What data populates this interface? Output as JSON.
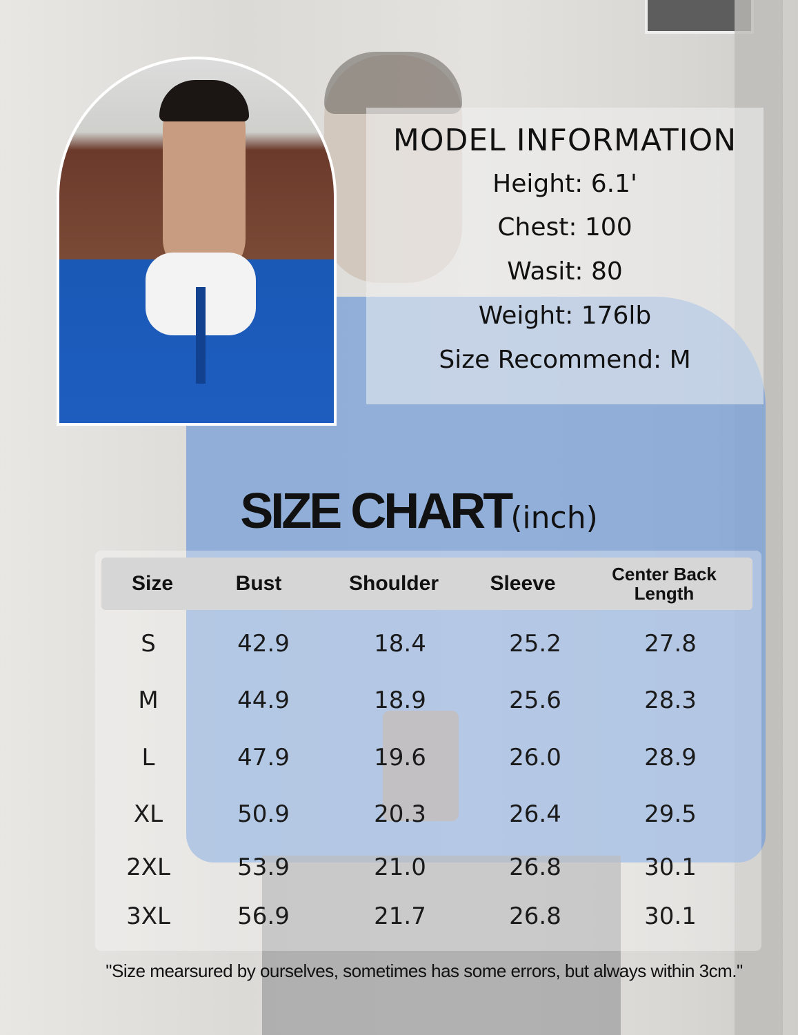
{
  "model_info": {
    "title": "MODEL INFORMATION",
    "lines": [
      "Height: 6.1'",
      "Chest: 100",
      "Wasit: 80",
      "Weight: 176lb",
      "Size Recommend: M"
    ]
  },
  "size_chart": {
    "title": "SIZE CHART",
    "unit": "(inch)",
    "headers": [
      "Size",
      "Bust",
      "Shoulder",
      "Sleeve",
      "Center Back Length"
    ],
    "rows": [
      [
        "S",
        "42.9",
        "18.4",
        "25.2",
        "27.8"
      ],
      [
        "M",
        "44.9",
        "18.9",
        "25.6",
        "28.3"
      ],
      [
        "L",
        "47.9",
        "19.6",
        "26.0",
        "28.9"
      ],
      [
        "XL",
        "50.9",
        "20.3",
        "26.4",
        "29.5"
      ],
      [
        "2XL",
        "53.9",
        "21.0",
        "26.8",
        "30.1"
      ],
      [
        "3XL",
        "56.9",
        "21.7",
        "26.8",
        "30.1"
      ]
    ],
    "note": "\"Size mearsured by ourselves, sometimes has some errors, but always within 3cm.\""
  },
  "colors": {
    "sweater": "#1e5dbf",
    "header_bg": "#d6d6d6"
  }
}
